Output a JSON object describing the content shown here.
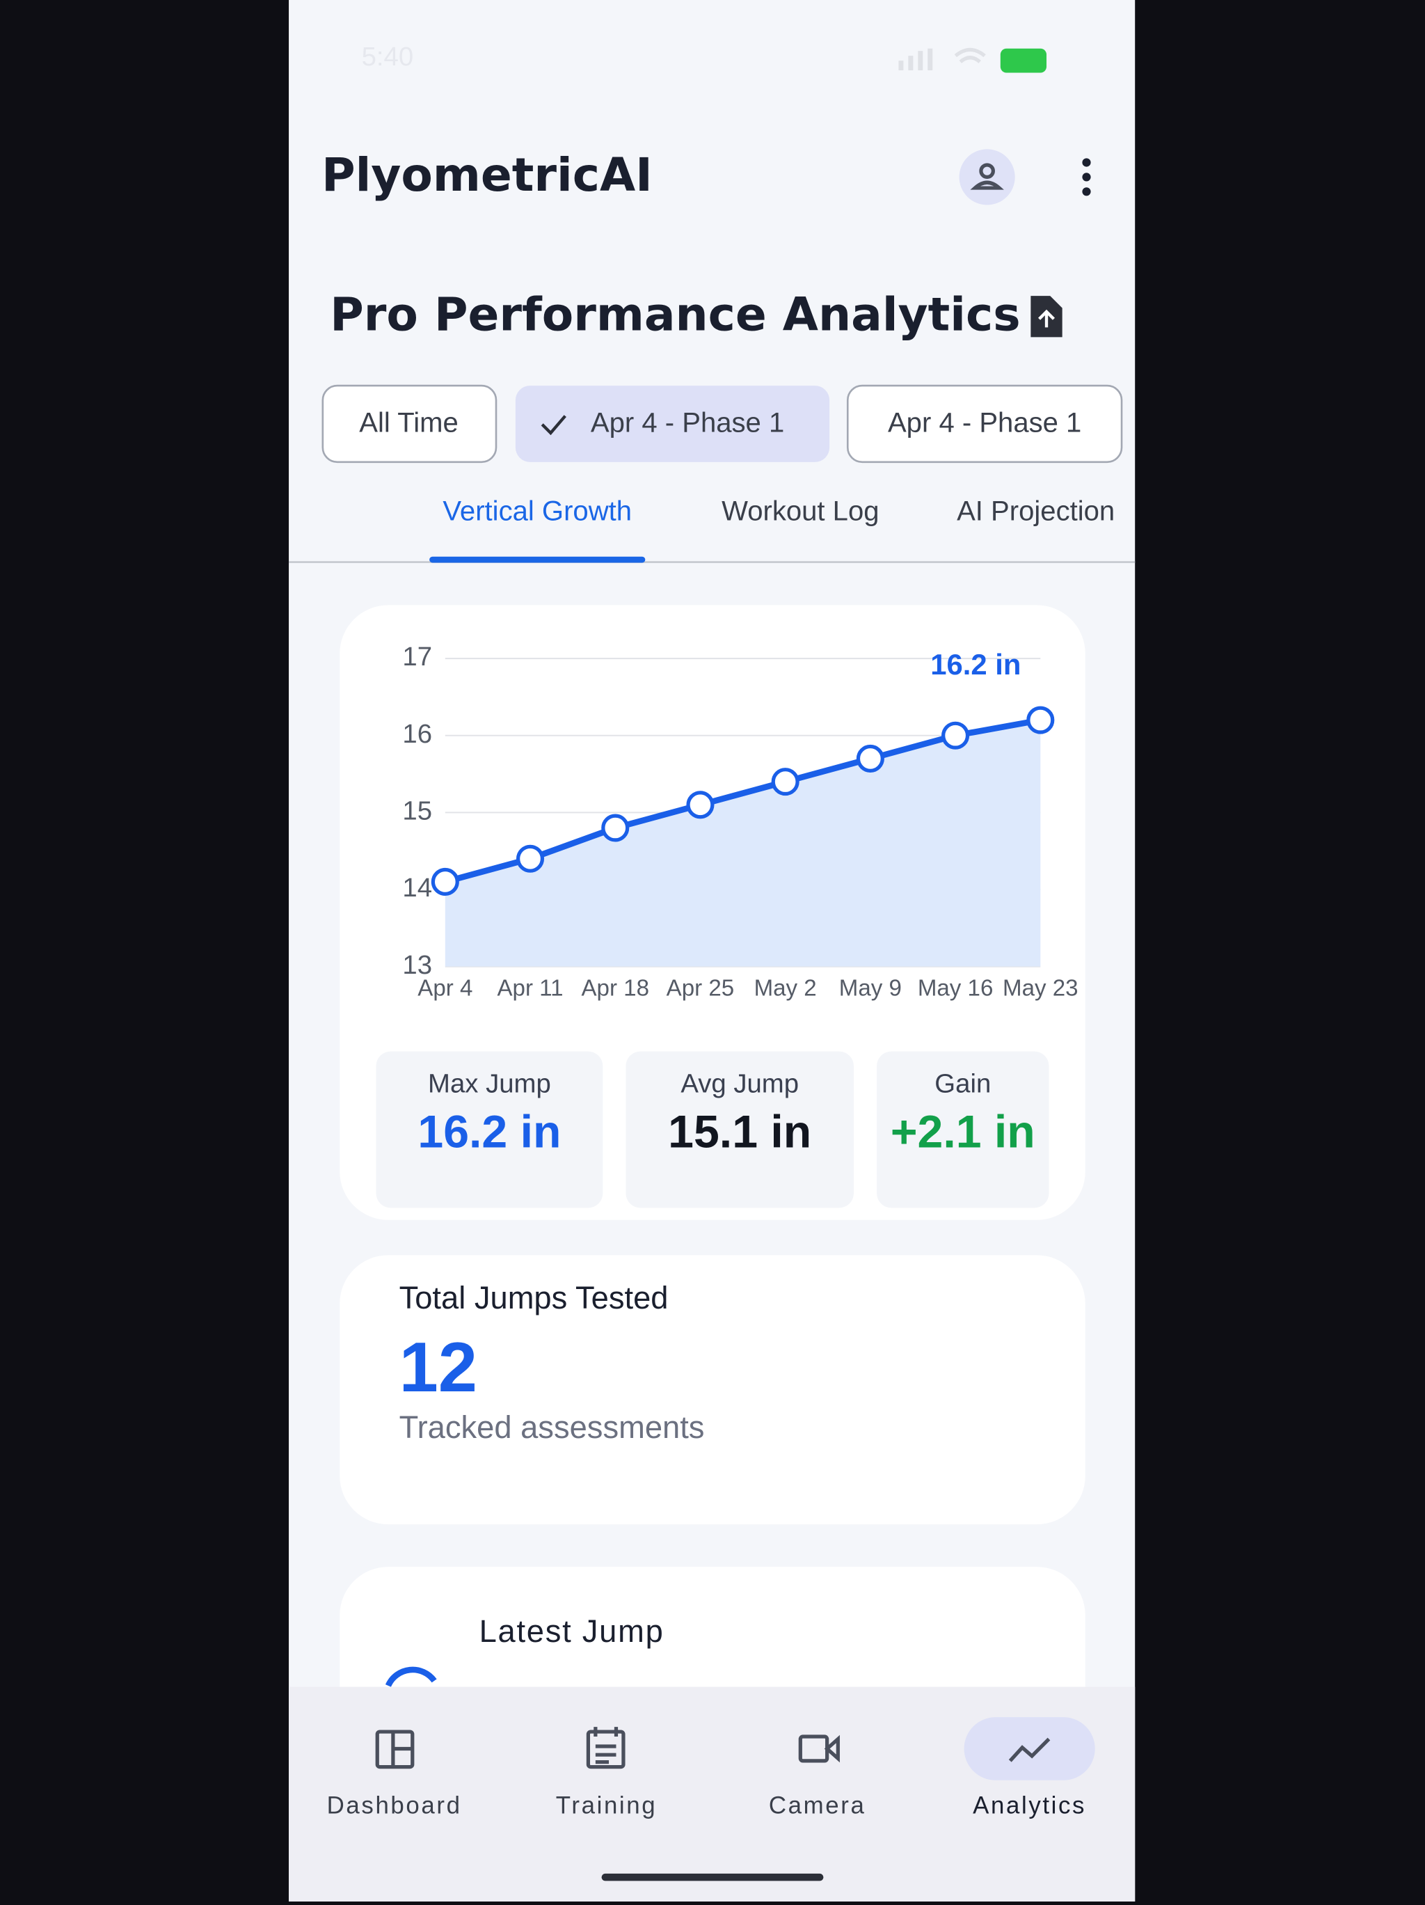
{
  "status": {
    "time": "5:40"
  },
  "header": {
    "title": "PlyometricAI"
  },
  "section": {
    "title": "Pro Performance Analytics"
  },
  "filters": [
    "All Time",
    "Apr 4 - Phase 1",
    "Apr 4 - Phase 1"
  ],
  "tabs": [
    "Vertical Growth",
    "Workout Log",
    "AI Projection"
  ],
  "chart_data": {
    "type": "area",
    "categories": [
      "Apr 4",
      "Apr 11",
      "Apr 18",
      "Apr 25",
      "May 2",
      "May 9",
      "May 16",
      "May 23"
    ],
    "values": [
      14.1,
      14.4,
      14.8,
      15.1,
      15.4,
      15.7,
      16.0,
      16.2
    ],
    "color": "#1a5fe8",
    "fill_color": "#dde9fc",
    "ylim": [
      13,
      17
    ],
    "yticks": [
      13,
      14,
      15,
      16,
      17
    ],
    "grid": true,
    "annotation": "16.2 in"
  },
  "stats": [
    {
      "label": "Max Jump",
      "value": "16.2 in"
    },
    {
      "label": "Avg Jump",
      "value": "15.1 in"
    },
    {
      "label": "Gain",
      "value": "+2.1 in"
    }
  ],
  "total_card": {
    "title": "Total Jumps Tested",
    "value": "12",
    "caption": "Tracked assessments"
  },
  "latest_card": {
    "title": "Latest Jump"
  },
  "nav": [
    "Dashboard",
    "Training",
    "Camera",
    "Analytics"
  ]
}
